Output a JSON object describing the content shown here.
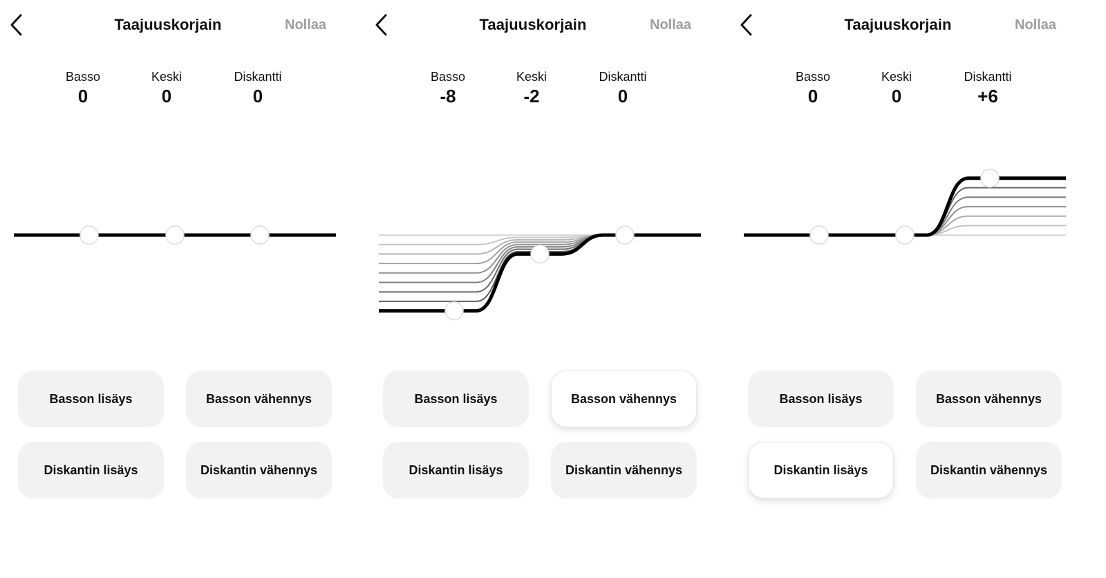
{
  "panels": [
    {
      "title": "Taajuuskorjain",
      "reset_label": "Nollaa",
      "bands": {
        "bass": {
          "label": "Basso",
          "value": "0"
        },
        "mid": {
          "label": "Keski",
          "value": "0"
        },
        "treble": {
          "label": "Diskantti",
          "value": "0"
        }
      },
      "presets": {
        "bass_boost": "Basson lisäys",
        "bass_cut": "Basson vähennys",
        "treble_boost": "Diskantin lisäys",
        "treble_cut": "Diskantin vähennys"
      },
      "active_preset": ""
    },
    {
      "title": "Taajuuskorjain",
      "reset_label": "Nollaa",
      "bands": {
        "bass": {
          "label": "Basso",
          "value": "-8"
        },
        "mid": {
          "label": "Keski",
          "value": "-2"
        },
        "treble": {
          "label": "Diskantti",
          "value": "0"
        }
      },
      "presets": {
        "bass_boost": "Basson lisäys",
        "bass_cut": "Basson vähennys",
        "treble_boost": "Diskantin lisäys",
        "treble_cut": "Diskantin vähennys"
      },
      "active_preset": "bass_cut"
    },
    {
      "title": "Taajuuskorjain",
      "reset_label": "Nollaa",
      "bands": {
        "bass": {
          "label": "Basso",
          "value": "0"
        },
        "mid": {
          "label": "Keski",
          "value": "0"
        },
        "treble": {
          "label": "Diskantti",
          "value": "+6"
        }
      },
      "presets": {
        "bass_boost": "Basson lisäys",
        "bass_cut": "Basson vähennys",
        "treble_boost": "Diskantin lisäys",
        "treble_cut": "Diskantin vähennys"
      },
      "active_preset": "treble_boost"
    }
  ],
  "colors": {
    "curve": "#000000",
    "trail": "#9a9a9a",
    "button_bg": "#f2f2f2",
    "button_active_bg": "#ffffff",
    "reset_text": "#9e9e9e"
  },
  "icons": {
    "back": "chevron-left-icon",
    "knob": "circle-handle-icon"
  }
}
